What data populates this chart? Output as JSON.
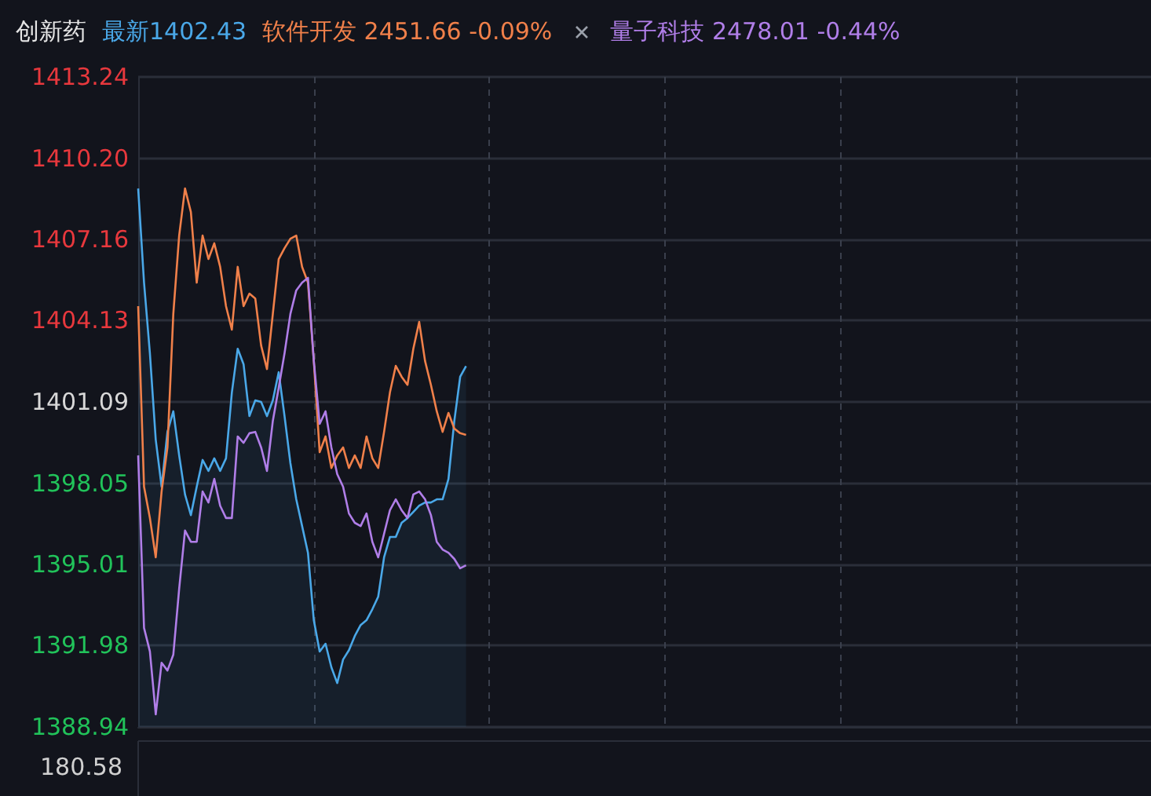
{
  "chart_data": {
    "type": "line",
    "title": "创新药",
    "categories": [
      null,
      null,
      null,
      null,
      null,
      null,
      null,
      null,
      null,
      null,
      null,
      null,
      null,
      null,
      null,
      null,
      null,
      null,
      null,
      null,
      null,
      null,
      null,
      null,
      null,
      null,
      null,
      null,
      null,
      null,
      null,
      null,
      null,
      null,
      null,
      null,
      null,
      null,
      null,
      null,
      null,
      null,
      null,
      null,
      null,
      null,
      null,
      null,
      null,
      null,
      null,
      null,
      null,
      null,
      null,
      null,
      null,
      null,
      null,
      null,
      null,
      null,
      null,
      null,
      null,
      null,
      null,
      null,
      null,
      null,
      null,
      null,
      null,
      null,
      null,
      null,
      null,
      null,
      null,
      null,
      null,
      null,
      null,
      null,
      null,
      null,
      null,
      null,
      null,
      null,
      null,
      null,
      null,
      null,
      null,
      null,
      null,
      null,
      null,
      null,
      null,
      null,
      null,
      null,
      null,
      null,
      null,
      null,
      null,
      null,
      null,
      null,
      null,
      null,
      null,
      null,
      null,
      null,
      null,
      null,
      null,
      null,
      null,
      null,
      null,
      null,
      null,
      null,
      null,
      null,
      null,
      null,
      null,
      null,
      null,
      null,
      null,
      null,
      null,
      null,
      null,
      null,
      null,
      null,
      null,
      null,
      null,
      null,
      null,
      null,
      null,
      null,
      null,
      null,
      null,
      null,
      null,
      null,
      null,
      null,
      null,
      null,
      null,
      null,
      null,
      null,
      null,
      null,
      null,
      null,
      null,
      null,
      null,
      null
    ],
    "series": [
      {
        "name": "最新1402.43",
        "type": "area",
        "color": "#4aa8e8",
        "values": [
          1409.07,
          1405.55,
          1402.91,
          1399.68,
          1397.92,
          1399.97,
          1400.74,
          1399.09,
          1397.63,
          1396.86,
          1397.92,
          1398.92,
          1398.51,
          1398.98,
          1398.51,
          1398.98,
          1401.44,
          1403.08,
          1402.5,
          1400.56,
          1401.15,
          1401.09,
          1400.56,
          1401.15,
          1402.2,
          1400.56,
          1398.8,
          1397.45,
          1396.45,
          1395.45,
          1392.93,
          1391.76,
          1392.05,
          1391.17,
          1390.58,
          1391.46,
          1391.81,
          1392.34,
          1392.75,
          1392.93,
          1393.34,
          1393.81,
          1395.28,
          1396.04,
          1396.04,
          1396.57,
          1396.75,
          1396.98,
          1397.21,
          1397.33,
          1397.33,
          1397.45,
          1397.45,
          1398.21,
          1400.38,
          1402.03,
          1402.43,
          null,
          null,
          null,
          null,
          null,
          null,
          null,
          null,
          null,
          null,
          null,
          null,
          null,
          null,
          null,
          null,
          null,
          null,
          null,
          null,
          null,
          null,
          null,
          null,
          null,
          null,
          null,
          null,
          null,
          null,
          null,
          null,
          null,
          null,
          null,
          null,
          null,
          null,
          null,
          null,
          null,
          null,
          null,
          null,
          null,
          null,
          null,
          null,
          null,
          null,
          null,
          null,
          null,
          null,
          null,
          null,
          null,
          null,
          null,
          null,
          null,
          null,
          null,
          null,
          null,
          null,
          null,
          null,
          null,
          null,
          null,
          null,
          null,
          null,
          null,
          null,
          null,
          null,
          null,
          null,
          null,
          null,
          null,
          null,
          null,
          null,
          null,
          null,
          null,
          null,
          null,
          null,
          null,
          null,
          null,
          null,
          null,
          null,
          null,
          null,
          null,
          null,
          null,
          null,
          null,
          null,
          null,
          null,
          null,
          null,
          null,
          null,
          null,
          null,
          null,
          null,
          null
        ]
      },
      {
        "name": "软件开发 2451.66 -0.09%",
        "color": "#f0804a",
        "values": [
          1404.67,
          1397.92,
          1396.75,
          1395.28,
          1397.74,
          1399.39,
          1404.38,
          1407.31,
          1409.07,
          1408.19,
          1405.55,
          1407.31,
          1406.43,
          1407.02,
          1406.14,
          1404.67,
          1403.79,
          1406.14,
          1404.67,
          1405.14,
          1404.96,
          1403.2,
          1402.32,
          1404.38,
          1406.43,
          1406.84,
          1407.19,
          1407.31,
          1406.14,
          1405.55,
          1402.62,
          1399.21,
          1399.8,
          1398.62,
          1399.09,
          1399.39,
          1398.62,
          1399.09,
          1398.62,
          1399.8,
          1398.98,
          1398.62,
          1399.97,
          1401.44,
          1402.44,
          1402.03,
          1401.73,
          1403.08,
          1404.08,
          1402.62,
          1401.73,
          1400.74,
          1399.97,
          1400.68,
          1400.09,
          1399.92,
          1399.86,
          null,
          null,
          null,
          null,
          null,
          null,
          null,
          null,
          null,
          null,
          null,
          null,
          null,
          null,
          null,
          null,
          null,
          null,
          null,
          null,
          null,
          null,
          null,
          null,
          null,
          null,
          null,
          null,
          null,
          null,
          null,
          null,
          null,
          null,
          null,
          null,
          null,
          null,
          null,
          null,
          null,
          null,
          null,
          null,
          null,
          null,
          null,
          null,
          null,
          null,
          null,
          null,
          null,
          null,
          null,
          null,
          null,
          null,
          null,
          null,
          null,
          null,
          null,
          null,
          null,
          null,
          null,
          null,
          null,
          null,
          null,
          null,
          null,
          null,
          null,
          null,
          null,
          null,
          null,
          null,
          null,
          null,
          null,
          null,
          null,
          null,
          null,
          null,
          null,
          null,
          null,
          null,
          null,
          null,
          null,
          null,
          null,
          null,
          null,
          null,
          null,
          null,
          null,
          null,
          null,
          null,
          null,
          null,
          null,
          null,
          null,
          null,
          null,
          null,
          null,
          null,
          null
        ]
      },
      {
        "name": "量子科技 2478.01 -0.44%",
        "color": "#b07ee8",
        "values": [
          1399.09,
          1392.64,
          1391.76,
          1389.41,
          1391.34,
          1391.05,
          1391.64,
          1394.1,
          1396.28,
          1395.86,
          1395.86,
          1397.74,
          1397.33,
          1398.21,
          1397.21,
          1396.75,
          1396.75,
          1399.8,
          1399.56,
          1399.92,
          1399.97,
          1399.39,
          1398.51,
          1400.38,
          1401.62,
          1402.91,
          1404.38,
          1405.26,
          1405.55,
          1405.73,
          1402.62,
          1400.27,
          1400.74,
          1399.39,
          1398.39,
          1397.92,
          1396.92,
          1396.57,
          1396.45,
          1396.92,
          1395.86,
          1395.28,
          1396.16,
          1397.04,
          1397.45,
          1397.04,
          1396.75,
          1397.63,
          1397.74,
          1397.45,
          1396.86,
          1395.86,
          1395.57,
          1395.45,
          1395.22,
          1394.87,
          1394.98,
          null,
          null,
          null,
          null,
          null,
          null,
          null,
          null,
          null,
          null,
          null,
          null,
          null,
          null,
          null,
          null,
          null,
          null,
          null,
          null,
          null,
          null,
          null,
          null,
          null,
          null,
          null,
          null,
          null,
          null,
          null,
          null,
          null,
          null,
          null,
          null,
          null,
          null,
          null,
          null,
          null,
          null,
          null,
          null,
          null,
          null,
          null,
          null,
          null,
          null,
          null,
          null,
          null,
          null,
          null,
          null,
          null,
          null,
          null,
          null,
          null,
          null,
          null,
          null,
          null,
          null,
          null,
          null,
          null,
          null,
          null,
          null,
          null,
          null,
          null,
          null,
          null,
          null,
          null,
          null,
          null,
          null,
          null,
          null,
          null,
          null,
          null,
          null,
          null,
          null,
          null,
          null,
          null,
          null,
          null,
          null,
          null,
          null,
          null,
          null,
          null,
          null,
          null,
          null,
          null,
          null,
          null,
          null,
          null,
          null,
          null,
          null,
          null,
          null,
          null,
          null,
          null
        ]
      }
    ],
    "ylim": [
      1388.94,
      1413.24
    ],
    "yticks": [
      1413.24,
      {
        "value": 1410.2,
        "label": "1410.20"
      },
      1407.16,
      1404.13,
      1401.09,
      1398.05,
      1395.01,
      1391.98,
      1388.94
    ],
    "grid": true,
    "legend": "top left",
    "line_style": "solid",
    "annotations": [
      "180.58"
    ]
  }
}
